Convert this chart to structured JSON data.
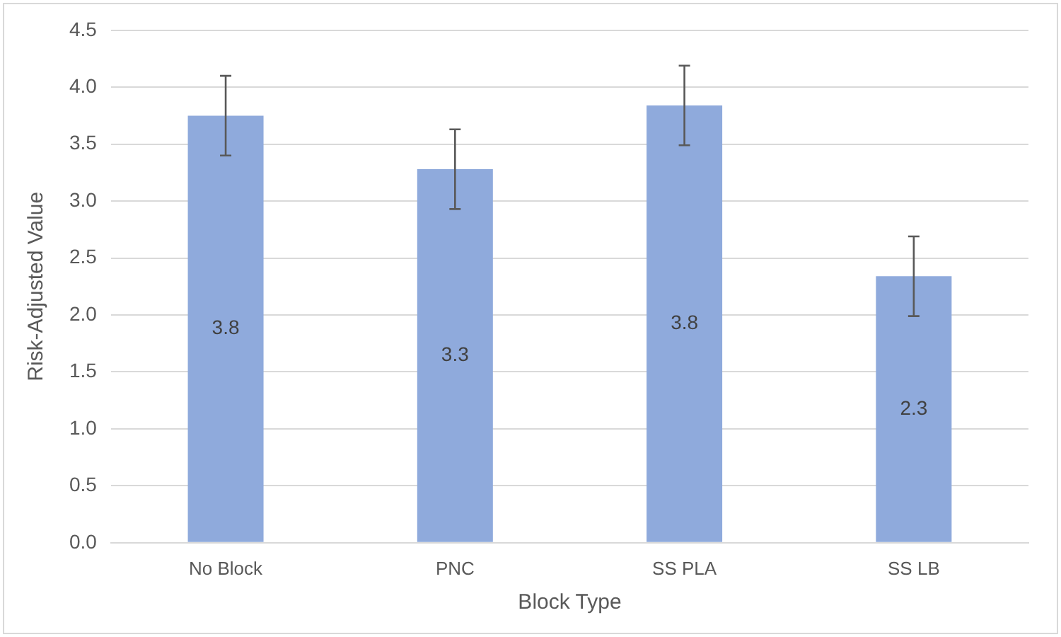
{
  "chart_data": {
    "type": "bar",
    "xlabel": "Block Type",
    "ylabel": "Risk-Adjusted Value",
    "categories": [
      "No Block",
      "PNC",
      "SS PLA",
      "SS LB"
    ],
    "values": [
      3.75,
      3.28,
      3.84,
      2.34
    ],
    "value_labels": [
      "3.8",
      "3.3",
      "3.8",
      "2.3"
    ],
    "errors": [
      0.35,
      0.35,
      0.35,
      0.35
    ],
    "color": "#8faadc",
    "ylim": [
      0,
      4.5
    ],
    "yticks": [
      {
        "value": 0,
        "label": "0.0"
      },
      0.5,
      {
        "value": 1,
        "label": "1.0"
      },
      1.5,
      {
        "value": 2,
        "label": "2.0"
      },
      2.5,
      {
        "value": 3,
        "label": "3.0"
      },
      3.5,
      {
        "value": 4,
        "label": "4.0"
      },
      4.5
    ],
    "grid": "y",
    "legend": false
  }
}
